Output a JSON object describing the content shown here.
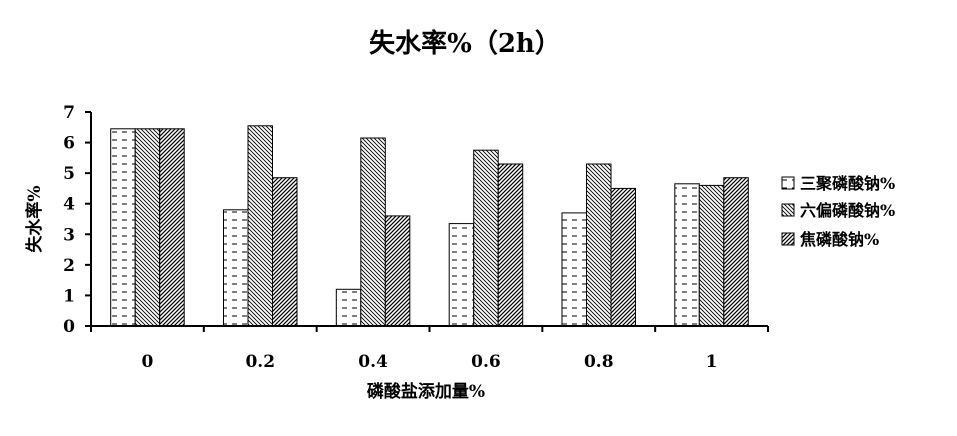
{
  "chart_data": {
    "type": "bar",
    "title": "失水率%（2h）",
    "xlabel": "磷酸盐添加量%",
    "ylabel": "失水率%",
    "categories": [
      "0",
      "0.2",
      "0.4",
      "0.6",
      "0.8",
      "1"
    ],
    "series": [
      {
        "name": "三聚磷酸钠%",
        "values": [
          6.45,
          3.8,
          1.2,
          3.35,
          3.7,
          4.65
        ]
      },
      {
        "name": "六偏磷酸钠%",
        "values": [
          6.45,
          6.55,
          6.15,
          5.75,
          5.3,
          4.6
        ]
      },
      {
        "name": "焦磷酸钠%",
        "values": [
          6.45,
          4.85,
          3.6,
          5.3,
          4.5,
          4.85
        ]
      }
    ],
    "ylim": [
      0,
      7
    ],
    "yticks": [
      "0",
      "1",
      "2",
      "3",
      "4",
      "5",
      "6",
      "7"
    ],
    "legend_position": "right",
    "grid": false,
    "patterns": [
      "horizontal-dashes",
      "backward-diagonal-hatch",
      "forward-diagonal-hatch"
    ]
  }
}
